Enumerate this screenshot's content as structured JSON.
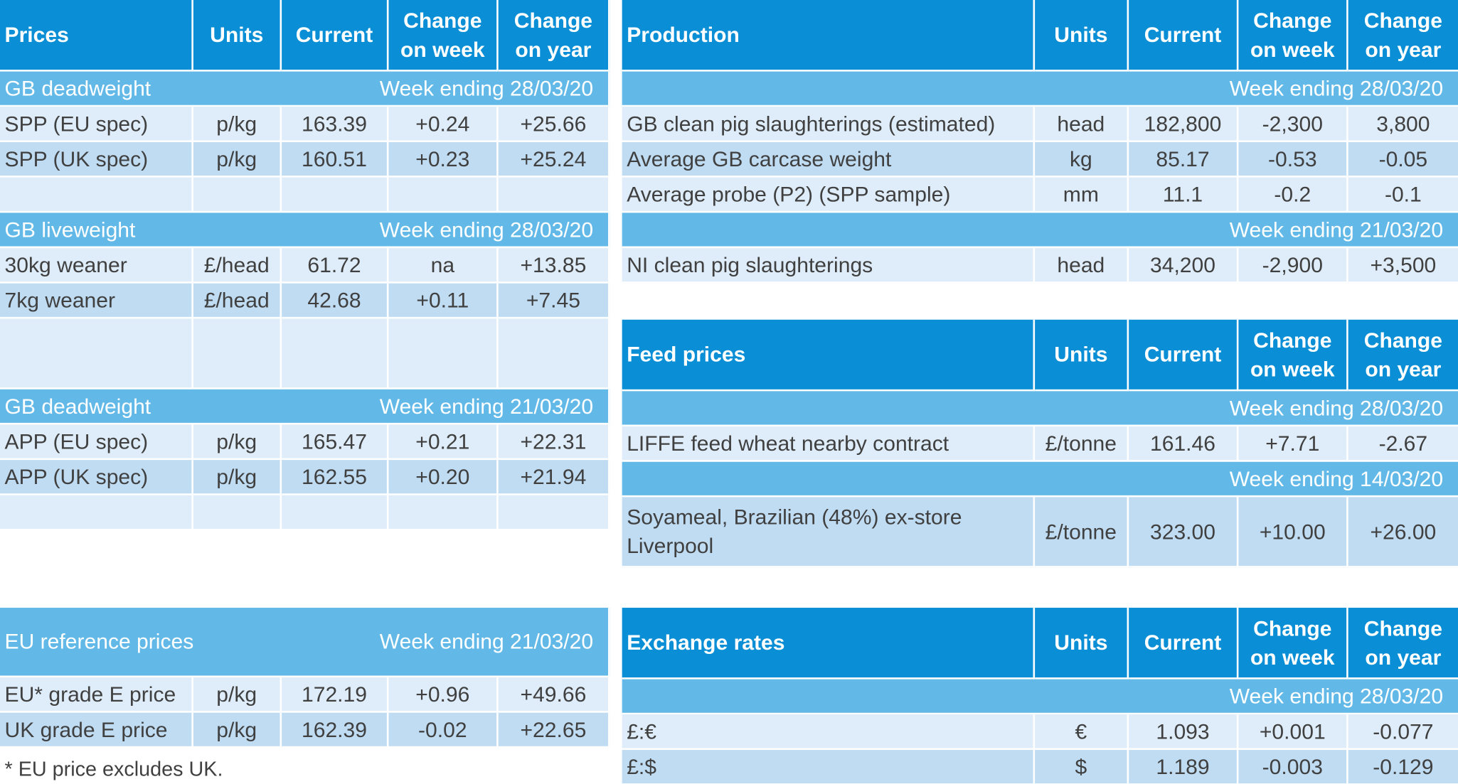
{
  "prices": {
    "header": [
      "Prices",
      "Units",
      "Current",
      [
        "Change",
        "on week"
      ],
      [
        "Change",
        "on year"
      ]
    ],
    "blocks": [
      {
        "section": "GB deadweight",
        "week": "Week ending 28/03/20",
        "rows": [
          [
            "SPP (EU spec)",
            "p/kg",
            "163.39",
            "+0.24",
            "+25.66"
          ],
          [
            "SPP (UK spec)",
            "p/kg",
            "160.51",
            "+0.23",
            "+25.24"
          ]
        ]
      },
      {
        "section": "GB liveweight",
        "week": "Week ending 28/03/20",
        "rows": [
          [
            "30kg weaner",
            "£/head",
            "61.72",
            "na",
            "+13.85"
          ],
          [
            "7kg weaner",
            "£/head",
            "42.68",
            "+0.11",
            "+7.45"
          ]
        ]
      },
      {
        "section": "GB deadweight",
        "week": "Week ending 21/03/20",
        "rows": [
          [
            "APP (EU spec)",
            "p/kg",
            "165.47",
            "+0.21",
            "+22.31"
          ],
          [
            "APP (UK spec)",
            "p/kg",
            "162.55",
            "+0.20",
            "+21.94"
          ]
        ]
      }
    ]
  },
  "eu_reference": {
    "title": "EU reference prices",
    "week": "Week ending 21/03/20",
    "rows": [
      [
        "EU* grade E price",
        "p/kg",
        "172.19",
        "+0.96",
        "+49.66"
      ],
      [
        "UK grade E price",
        "p/kg",
        "162.39",
        "-0.02",
        "+22.65"
      ]
    ],
    "footnote": "* EU price excludes UK."
  },
  "production": {
    "header": [
      "Production",
      "Units",
      "Current",
      [
        "Change",
        "on week"
      ],
      [
        "Change",
        "on year"
      ]
    ],
    "blocks": [
      {
        "week": "Week ending 28/03/20",
        "rows": [
          [
            "GB clean pig slaughterings (estimated)",
            "head",
            "182,800",
            "-2,300",
            "3,800"
          ],
          [
            "Average GB carcase weight",
            "kg",
            "85.17",
            "-0.53",
            "-0.05"
          ],
          [
            "Average probe (P2) (SPP sample)",
            "mm",
            "11.1",
            "-0.2",
            "-0.1"
          ]
        ]
      },
      {
        "week": "Week ending 21/03/20",
        "rows": [
          [
            "NI clean pig slaughterings",
            "head",
            "34,200",
            "-2,900",
            "+3,500"
          ]
        ]
      }
    ]
  },
  "feed": {
    "header": [
      "Feed prices",
      "Units",
      "Current",
      [
        "Change",
        "on week"
      ],
      [
        "Change",
        "on year"
      ]
    ],
    "blocks": [
      {
        "week": "Week ending 28/03/20",
        "rows": [
          [
            "LIFFE feed wheat nearby contract",
            "£/tonne",
            "161.46",
            "+7.71",
            "-2.67"
          ]
        ]
      },
      {
        "week": "Week ending 14/03/20",
        "rows": [
          [
            "Soyameal, Brazilian (48%) ex-store Liverpool",
            "£/tonne",
            "323.00",
            "+10.00",
            "+26.00"
          ]
        ]
      }
    ]
  },
  "exchange": {
    "header": [
      "Exchange rates",
      "Units",
      "Current",
      [
        "Change",
        "on week"
      ],
      [
        "Change",
        "on year"
      ]
    ],
    "blocks": [
      {
        "week": "Week ending 28/03/20",
        "rows": [
          [
            "£:€",
            "€",
            "1.093",
            "+0.001",
            "-0.077"
          ],
          [
            "£:$",
            "$",
            "1.189",
            "-0.003",
            "-0.129"
          ]
        ]
      }
    ]
  }
}
